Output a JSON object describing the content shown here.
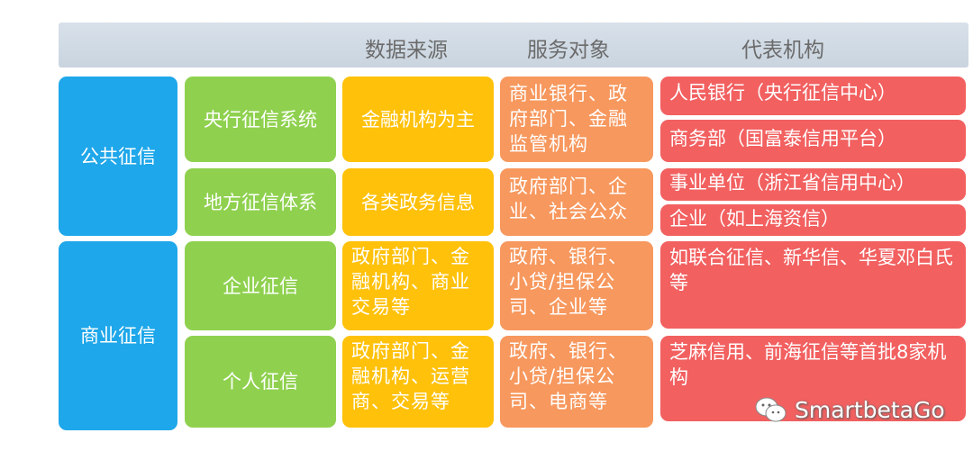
{
  "header": {
    "columns": [
      "数据来源",
      "服务对象",
      "代表机构"
    ]
  },
  "categories": [
    {
      "label": "公共征信",
      "rows": [
        {
          "system": "央行征信系统",
          "source": "金融机构为主",
          "clients": "商业银行、政府部门、金融监管机构",
          "institutions": [
            "人民银行（央行征信中心）",
            "商务部（国富泰信用平台）"
          ]
        },
        {
          "system": "地方征信体系",
          "source": "各类政务信息",
          "clients": "政府部门、企业、社会公众",
          "institutions": [
            "事业单位（浙江省信用中心）",
            "企业（如上海资信）"
          ]
        }
      ]
    },
    {
      "label": "商业征信",
      "rows": [
        {
          "system": "企业征信",
          "source": "政府部门、金融机构、商业交易等",
          "clients": "政府、银行、小贷/担保公司、企业等",
          "institutions": [
            "如联合征信、新华信、华夏邓白氏等"
          ]
        },
        {
          "system": "个人征信",
          "source": "政府部门、金融机构、运营商、交易等",
          "clients": "政府、银行、小贷/担保公司、电商等",
          "institutions": [
            "芝麻信用、前海征信等首批8家机构"
          ]
        }
      ]
    }
  ],
  "watermark": {
    "icon": "wechat-icon",
    "text": "SmartbetaGo"
  },
  "colors": {
    "category": "#1ea7ea",
    "system": "#8fd14f",
    "source": "#ffc10a",
    "clients": "#f7985e",
    "institutions": "#f26060"
  }
}
